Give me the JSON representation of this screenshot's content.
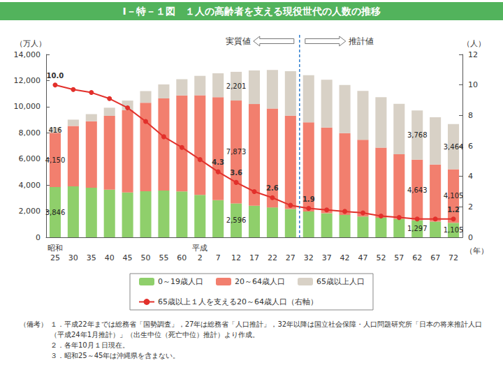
{
  "chart_data": {
    "type": "bar",
    "title": "Ⅰ－特－１図　１人の高齢者を支える現役世代の人数の推移",
    "x_label": "（年）",
    "y_label": "（万人）",
    "y2_label": "（人）",
    "categories": [
      "昭和\n25",
      "30",
      "35",
      "40",
      "45",
      "50",
      "55",
      "60",
      "平成\n2",
      "7",
      "12",
      "17",
      "22",
      "27",
      "32",
      "37",
      "42",
      "47",
      "52",
      "57",
      "62",
      "67",
      "72"
    ],
    "stacked": true,
    "data_labels": true,
    "grid": false,
    "legend": "bottom",
    "ylim": [
      0,
      14000
    ],
    "yticks": [
      0,
      {
        "value": 2000,
        "label": "2,000"
      },
      {
        "value": 4000,
        "label": "4,000"
      },
      {
        "value": 6000,
        "label": "6,000"
      },
      {
        "value": 8000,
        "label": "8,000"
      },
      {
        "value": 10000,
        "label": "10,000"
      },
      {
        "value": 12000,
        "label": "12,000"
      },
      {
        "value": 14000,
        "label": "14,000"
      }
    ],
    "y2lim": [
      0,
      12
    ],
    "y2ticks": [
      0,
      2,
      4,
      6,
      8,
      10,
      12
    ],
    "annotations": [
      "実質値",
      "推計値"
    ],
    "series": [
      {
        "name": "0～19歳人口",
        "type": "bar",
        "color": "#8fcf6b",
        "values": [
          3846,
          3900,
          3800,
          3650,
          3430,
          3530,
          3580,
          3520,
          3250,
          2850,
          2596,
          2420,
          2290,
          2160,
          1980,
          1840,
          1710,
          1590,
          1500,
          1400,
          1297,
          1200,
          1105
        ],
        "value_labels": [
          "3,846",
          null,
          null,
          null,
          null,
          null,
          null,
          null,
          null,
          null,
          "2,596",
          null,
          null,
          null,
          null,
          null,
          null,
          null,
          null,
          null,
          "1,297",
          null,
          "1,105"
        ]
      },
      {
        "name": "20～64歳人口",
        "type": "bar",
        "color": "#f27f6e",
        "values": [
          4150,
          4628,
          5090,
          5651,
          6297,
          6774,
          7056,
          7335,
          7621,
          7877,
          7873,
          7781,
          7568,
          7156,
          6818,
          6569,
          6267,
          5881,
          5360,
          4965,
          4643,
          4367,
          4105
        ],
        "value_labels": [
          "4,150",
          null,
          null,
          null,
          null,
          null,
          null,
          null,
          null,
          null,
          "7,873",
          null,
          null,
          null,
          null,
          null,
          null,
          null,
          null,
          null,
          "4,643",
          null,
          "4,105"
        ]
      },
      {
        "name": "65歳以上人口",
        "type": "bar",
        "color": "#d8d1c6",
        "values": [
          416,
          480,
          540,
          620,
          740,
          890,
          1070,
          1250,
          1490,
          1830,
          2201,
          2576,
          2948,
          3395,
          3612,
          3657,
          3685,
          3741,
          3868,
          3856,
          3768,
          3626,
          3464
        ],
        "value_labels": [
          "416",
          null,
          null,
          null,
          null,
          null,
          null,
          null,
          null,
          null,
          "2,201",
          null,
          null,
          null,
          null,
          null,
          null,
          null,
          null,
          null,
          "3,768",
          null,
          "3,464"
        ]
      },
      {
        "name": "65歳以上１人を支える20～64歳人口（右軸）",
        "type": "line",
        "axis": "y2",
        "color": "#e2302b",
        "marker": "circle",
        "values": [
          10.0,
          9.7,
          9.5,
          9.1,
          8.5,
          7.6,
          6.6,
          5.9,
          5.1,
          4.3,
          3.6,
          3.0,
          2.6,
          2.1,
          1.9,
          1.8,
          1.7,
          1.6,
          1.4,
          1.3,
          1.2,
          1.2,
          1.2
        ],
        "value_labels": [
          "10.0",
          null,
          null,
          null,
          null,
          null,
          null,
          null,
          null,
          "4.3",
          "3.6",
          null,
          "2.6",
          null,
          "1.9",
          null,
          null,
          null,
          null,
          null,
          null,
          null,
          "1.2"
        ]
      }
    ],
    "notes": {
      "label": "（備考）",
      "items": [
        "１．平成22年までは総務省「国勢調査」，27年は総務省「人口推計」，32年以降は国立社会保障・人口問題研究所「日本の将来推計人口（平成24年1月推計）」（出生中位（死亡中位）推計）より作成。",
        "２．各年10月１日現在。",
        "３．昭和25～45年は沖縄県を含まない。"
      ]
    }
  }
}
